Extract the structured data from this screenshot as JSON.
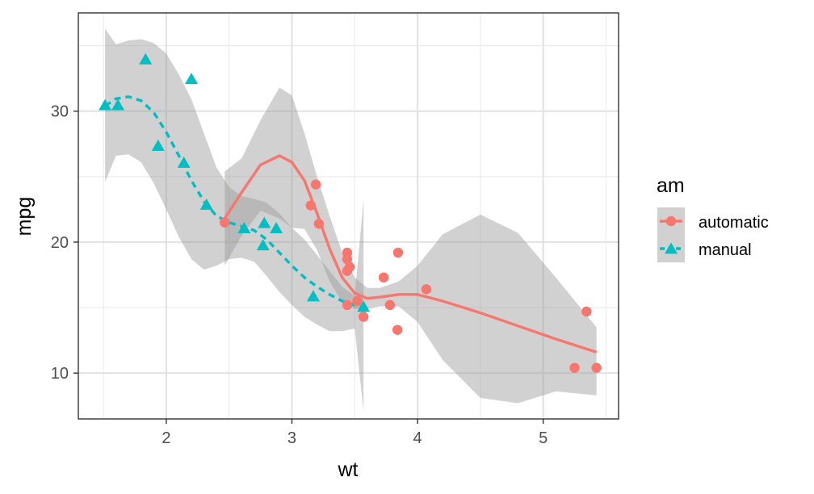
{
  "chart_data": {
    "type": "scatter",
    "xlabel": "wt",
    "ylabel": "mpg",
    "xlim": [
      1.3,
      5.6
    ],
    "ylim": [
      6.5,
      37.5
    ],
    "x_ticks": [
      2,
      3,
      4,
      5
    ],
    "y_ticks": [
      10,
      20,
      30
    ],
    "x_tick_labels": [
      "2",
      "3",
      "4",
      "5"
    ],
    "y_tick_labels": [
      "10",
      "20",
      "30"
    ],
    "grid": true,
    "legend_title": "am",
    "legend_position": "right",
    "series": [
      {
        "name": "automatic",
        "color": "#F8766D",
        "marker": "circle",
        "line_style": "solid",
        "points": [
          [
            2.465,
            21.5
          ],
          [
            3.15,
            22.8
          ],
          [
            3.19,
            24.4
          ],
          [
            3.215,
            21.4
          ],
          [
            3.44,
            18.7
          ],
          [
            3.44,
            19.2
          ],
          [
            3.46,
            18.1
          ],
          [
            3.44,
            17.8
          ],
          [
            3.44,
            15.2
          ],
          [
            3.52,
            15.5
          ],
          [
            3.57,
            14.3
          ],
          [
            3.73,
            17.3
          ],
          [
            3.78,
            15.2
          ],
          [
            3.84,
            13.3
          ],
          [
            3.845,
            19.2
          ],
          [
            4.07,
            16.4
          ],
          [
            5.25,
            10.4
          ],
          [
            5.345,
            14.7
          ],
          [
            5.424,
            10.4
          ]
        ],
        "smooth": [
          [
            2.465,
            21.8
          ],
          [
            2.6,
            23.8
          ],
          [
            2.75,
            25.9
          ],
          [
            2.9,
            26.6
          ],
          [
            3.0,
            26.1
          ],
          [
            3.1,
            24.7
          ],
          [
            3.2,
            22.2
          ],
          [
            3.3,
            19.5
          ],
          [
            3.4,
            17.3
          ],
          [
            3.5,
            16.1
          ],
          [
            3.6,
            15.7
          ],
          [
            3.7,
            15.8
          ],
          [
            3.85,
            16.0
          ],
          [
            4.0,
            16.0
          ],
          [
            4.2,
            15.5
          ],
          [
            4.5,
            14.6
          ],
          [
            4.8,
            13.6
          ],
          [
            5.1,
            12.6
          ],
          [
            5.424,
            11.6
          ]
        ],
        "band_upper": [
          [
            2.465,
            25.4
          ],
          [
            2.6,
            26.4
          ],
          [
            2.75,
            29.3
          ],
          [
            2.9,
            31.8
          ],
          [
            3.0,
            31.2
          ],
          [
            3.1,
            28.3
          ],
          [
            3.2,
            25.0
          ],
          [
            3.3,
            22.0
          ],
          [
            3.4,
            19.2
          ],
          [
            3.5,
            17.3
          ],
          [
            3.6,
            16.5
          ],
          [
            3.7,
            16.5
          ],
          [
            3.85,
            17.0
          ],
          [
            4.0,
            18.2
          ],
          [
            4.2,
            20.6
          ],
          [
            4.5,
            22.1
          ],
          [
            4.8,
            20.7
          ],
          [
            5.1,
            17.3
          ],
          [
            5.424,
            13.5
          ]
        ],
        "band_lower": [
          [
            2.465,
            18.2
          ],
          [
            2.6,
            20.5
          ],
          [
            2.75,
            22.4
          ],
          [
            2.9,
            21.8
          ],
          [
            3.0,
            21.1
          ],
          [
            3.1,
            21.0
          ],
          [
            3.2,
            19.4
          ],
          [
            3.3,
            17.0
          ],
          [
            3.4,
            15.4
          ],
          [
            3.5,
            14.9
          ],
          [
            3.6,
            14.9
          ],
          [
            3.7,
            15.1
          ],
          [
            3.85,
            15.1
          ],
          [
            4.0,
            13.9
          ],
          [
            4.2,
            11.0
          ],
          [
            4.5,
            8.1
          ],
          [
            4.8,
            7.7
          ],
          [
            5.1,
            8.6
          ],
          [
            5.424,
            8.3
          ]
        ]
      },
      {
        "name": "manual",
        "color": "#00BFC4",
        "marker": "triangle",
        "line_style": "dashed",
        "points": [
          [
            1.513,
            30.4
          ],
          [
            1.615,
            30.4
          ],
          [
            1.835,
            33.9
          ],
          [
            1.935,
            27.3
          ],
          [
            2.14,
            26.0
          ],
          [
            2.2,
            32.4
          ],
          [
            2.32,
            22.8
          ],
          [
            2.62,
            21.0
          ],
          [
            2.77,
            19.7
          ],
          [
            2.78,
            21.4
          ],
          [
            2.875,
            21.0
          ],
          [
            3.17,
            15.8
          ],
          [
            3.57,
            15.0
          ]
        ],
        "smooth": [
          [
            1.513,
            30.4
          ],
          [
            1.6,
            30.95
          ],
          [
            1.7,
            31.1
          ],
          [
            1.8,
            30.8
          ],
          [
            1.9,
            29.9
          ],
          [
            2.0,
            28.4
          ],
          [
            2.1,
            26.6
          ],
          [
            2.2,
            24.7
          ],
          [
            2.3,
            23.1
          ],
          [
            2.4,
            22.0
          ],
          [
            2.5,
            21.5
          ],
          [
            2.6,
            21.2
          ],
          [
            2.7,
            20.9
          ],
          [
            2.8,
            20.2
          ],
          [
            2.9,
            19.2
          ],
          [
            3.0,
            18.2
          ],
          [
            3.1,
            17.3
          ],
          [
            3.2,
            16.6
          ],
          [
            3.3,
            16.0
          ],
          [
            3.4,
            15.5
          ],
          [
            3.5,
            15.2
          ],
          [
            3.57,
            15.0
          ]
        ],
        "band_upper": [
          [
            1.513,
            36.3
          ],
          [
            1.6,
            35.1
          ],
          [
            1.7,
            35.4
          ],
          [
            1.8,
            35.5
          ],
          [
            1.9,
            35.2
          ],
          [
            2.0,
            34.4
          ],
          [
            2.1,
            32.8
          ],
          [
            2.2,
            30.9
          ],
          [
            2.3,
            28.3
          ],
          [
            2.4,
            25.7
          ],
          [
            2.5,
            24.2
          ],
          [
            2.6,
            23.5
          ],
          [
            2.7,
            23.3
          ],
          [
            2.8,
            23.0
          ],
          [
            2.9,
            22.2
          ],
          [
            3.0,
            21.1
          ],
          [
            3.1,
            20.2
          ],
          [
            3.2,
            19.0
          ],
          [
            3.3,
            17.8
          ],
          [
            3.4,
            16.6
          ],
          [
            3.5,
            15.9
          ],
          [
            3.57,
            23.2
          ]
        ],
        "band_lower": [
          [
            1.513,
            24.6
          ],
          [
            1.6,
            26.6
          ],
          [
            1.7,
            26.7
          ],
          [
            1.8,
            26.1
          ],
          [
            1.9,
            24.5
          ],
          [
            2.0,
            22.5
          ],
          [
            2.1,
            20.4
          ],
          [
            2.2,
            18.7
          ],
          [
            2.3,
            17.9
          ],
          [
            2.4,
            18.2
          ],
          [
            2.5,
            18.7
          ],
          [
            2.6,
            18.8
          ],
          [
            2.7,
            18.5
          ],
          [
            2.8,
            17.4
          ],
          [
            2.9,
            16.2
          ],
          [
            3.0,
            15.2
          ],
          [
            3.1,
            14.3
          ],
          [
            3.2,
            13.7
          ],
          [
            3.3,
            13.2
          ],
          [
            3.4,
            13.2
          ],
          [
            3.5,
            13.4
          ],
          [
            3.57,
            7.1
          ]
        ]
      }
    ],
    "band_color": "#999999"
  }
}
